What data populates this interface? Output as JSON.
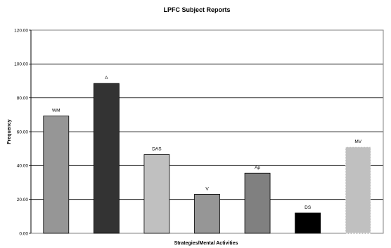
{
  "chart_data": {
    "type": "bar",
    "title": "LPFC Subject Reports",
    "xlabel": "Strategies/Mental Activities",
    "ylabel": "Frequency",
    "ylim": [
      0,
      120
    ],
    "ytick_labels": [
      "0.00",
      "20.00",
      "40.00",
      "60.00",
      "80.00",
      "100.00",
      "120.00"
    ],
    "grid": true,
    "legend": "none",
    "categories": [
      "WM",
      "A",
      "DAS",
      "V",
      "Ap",
      "DS",
      "MV"
    ],
    "values": [
      69.3,
      88.5,
      46.5,
      23.0,
      35.5,
      12.0,
      51.0
    ],
    "colors": [
      "#969696",
      "#333333",
      "#c0c0c0",
      "#969696",
      "#808080",
      "#000000",
      "#c0c0c0"
    ],
    "dashed_outline": [
      "MV"
    ]
  }
}
